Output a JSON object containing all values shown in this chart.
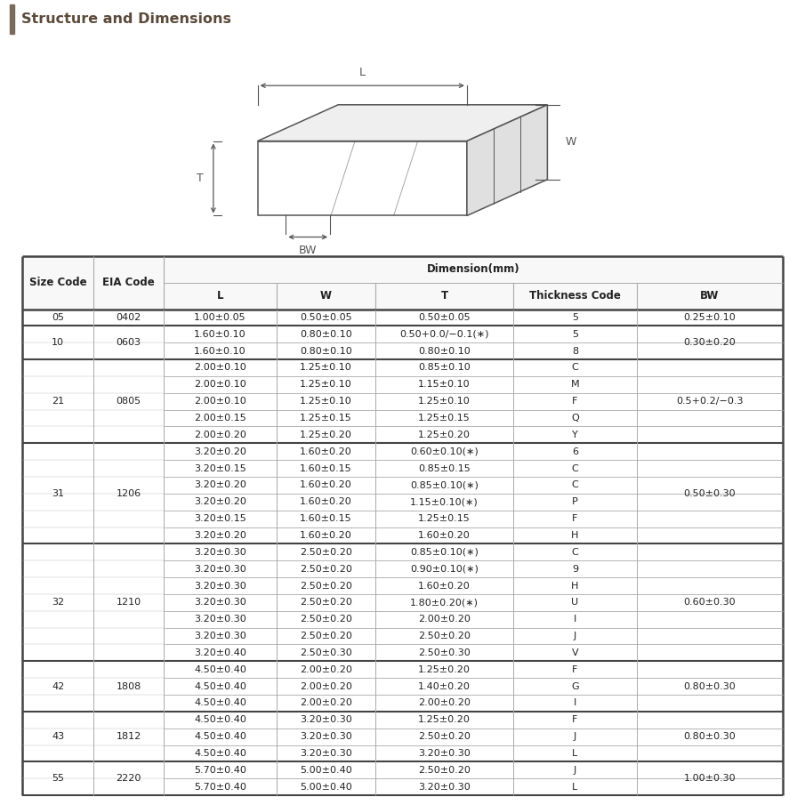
{
  "title": "Structure and Dimensions",
  "title_bar_color": "#d8d0c4",
  "title_text_color": "#5a4a3a",
  "rows": [
    {
      "size": "05",
      "eia": "0402",
      "sub_rows": [
        [
          "1.00±0.05",
          "0.50±0.05",
          "0.50±0.05",
          "5",
          "0.25±0.10"
        ]
      ]
    },
    {
      "size": "10",
      "eia": "0603",
      "sub_rows": [
        [
          "1.60±0.10",
          "0.80±0.10",
          "0.50+0.0/−0.1(∗)",
          "5",
          "0.30±0.20"
        ],
        [
          "1.60±0.10",
          "0.80±0.10",
          "0.80±0.10",
          "8",
          ""
        ]
      ]
    },
    {
      "size": "21",
      "eia": "0805",
      "sub_rows": [
        [
          "2.00±0.10",
          "1.25±0.10",
          "0.85±0.10",
          "C",
          "0.5+0.2/−0.3"
        ],
        [
          "2.00±0.10",
          "1.25±0.10",
          "1.15±0.10",
          "M",
          ""
        ],
        [
          "2.00±0.10",
          "1.25±0.10",
          "1.25±0.10",
          "F",
          ""
        ],
        [
          "2.00±0.15",
          "1.25±0.15",
          "1.25±0.15",
          "Q",
          ""
        ],
        [
          "2.00±0.20",
          "1.25±0.20",
          "1.25±0.20",
          "Y",
          ""
        ]
      ]
    },
    {
      "size": "31",
      "eia": "1206",
      "sub_rows": [
        [
          "3.20±0.20",
          "1.60±0.20",
          "0.60±0.10(∗)",
          "6",
          "0.50±0.30"
        ],
        [
          "3.20±0.15",
          "1.60±0.15",
          "0.85±0.15",
          "C",
          ""
        ],
        [
          "3.20±0.20",
          "1.60±0.20",
          "0.85±0.10(∗)",
          "C",
          ""
        ],
        [
          "3.20±0.20",
          "1.60±0.20",
          "1.15±0.10(∗)",
          "P",
          ""
        ],
        [
          "3.20±0.15",
          "1.60±0.15",
          "1.25±0.15",
          "F",
          ""
        ],
        [
          "3.20±0.20",
          "1.60±0.20",
          "1.60±0.20",
          "H",
          ""
        ]
      ]
    },
    {
      "size": "32",
      "eia": "1210",
      "sub_rows": [
        [
          "3.20±0.30",
          "2.50±0.20",
          "0.85±0.10(∗)",
          "C",
          "0.60±0.30"
        ],
        [
          "3.20±0.30",
          "2.50±0.20",
          "0.90±0.10(∗)",
          "9",
          ""
        ],
        [
          "3.20±0.30",
          "2.50±0.20",
          "1.60±0.20",
          "H",
          ""
        ],
        [
          "3.20±0.30",
          "2.50±0.20",
          "1.80±0.20(∗)",
          "U",
          ""
        ],
        [
          "3.20±0.30",
          "2.50±0.20",
          "2.00±0.20",
          "I",
          ""
        ],
        [
          "3.20±0.30",
          "2.50±0.20",
          "2.50±0.20",
          "J",
          ""
        ],
        [
          "3.20±0.40",
          "2.50±0.30",
          "2.50±0.30",
          "V",
          ""
        ]
      ]
    },
    {
      "size": "42",
      "eia": "1808",
      "sub_rows": [
        [
          "4.50±0.40",
          "2.00±0.20",
          "1.25±0.20",
          "F",
          "0.80±0.30"
        ],
        [
          "4.50±0.40",
          "2.00±0.20",
          "1.40±0.20",
          "G",
          ""
        ],
        [
          "4.50±0.40",
          "2.00±0.20",
          "2.00±0.20",
          "I",
          ""
        ]
      ]
    },
    {
      "size": "43",
      "eia": "1812",
      "sub_rows": [
        [
          "4.50±0.40",
          "3.20±0.30",
          "1.25±0.20",
          "F",
          "0.80±0.30"
        ],
        [
          "4.50±0.40",
          "3.20±0.30",
          "2.50±0.20",
          "J",
          ""
        ],
        [
          "4.50±0.40",
          "3.20±0.30",
          "3.20±0.30",
          "L",
          ""
        ]
      ]
    },
    {
      "size": "55",
      "eia": "2220",
      "sub_rows": [
        [
          "5.70±0.40",
          "5.00±0.40",
          "2.50±0.20",
          "J",
          "1.00±0.30"
        ],
        [
          "5.70±0.40",
          "5.00±0.40",
          "3.20±0.30",
          "L",
          ""
        ]
      ]
    }
  ],
  "bg_color": "#ffffff",
  "header_bg": "#f8f8f8",
  "line_color_thin": "#aaaaaa",
  "line_color_thick": "#444444",
  "text_color": "#222222",
  "font_size": 8.0,
  "header_font_size": 8.5
}
